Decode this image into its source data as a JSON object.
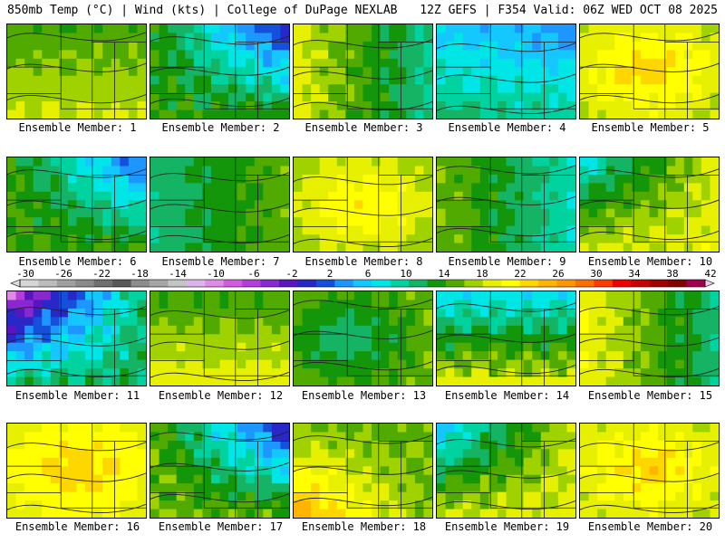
{
  "header": {
    "left": "850mb Temp (°C) | Wind (kts) | College of DuPage NEXLAB",
    "right": "12Z GEFS | F354 Valid: 06Z WED OCT 08 2025"
  },
  "chart_data": {
    "type": "heatmap",
    "title": "850mb Temp (°C) | Wind (kts)",
    "source": "College of DuPage NEXLAB",
    "model_run": "12Z GEFS",
    "forecast_hour": "F354",
    "valid_time": "06Z WED OCT 08 2025",
    "units": "°C",
    "colorbar": {
      "min": -30,
      "max": 42,
      "step": 2,
      "tick_labels": [
        "-30",
        "-26",
        "-22",
        "-18",
        "-14",
        "-10",
        "-6",
        "-2",
        "2",
        "6",
        "10",
        "14",
        "18",
        "22",
        "26",
        "30",
        "34",
        "38",
        "42"
      ],
      "colors": [
        "#d6d6d6",
        "#bcbcbc",
        "#a0a0a0",
        "#8a8a8a",
        "#707070",
        "#585858",
        "#8c8c8c",
        "#a6a6a6",
        "#c4c4c4",
        "#dcb4ec",
        "#e08ae8",
        "#d45ae0",
        "#b43cdc",
        "#8a28d0",
        "#5a14c0",
        "#2828c8",
        "#1450dc",
        "#1e96ff",
        "#14c8ff",
        "#00e6e6",
        "#00d2a0",
        "#14b464",
        "#14960a",
        "#50aa00",
        "#a0d200",
        "#e6f000",
        "#ffff00",
        "#ffd700",
        "#ffb400",
        "#ff9600",
        "#ff6e00",
        "#ff3c00",
        "#f00000",
        "#c80000",
        "#a00000",
        "#820000",
        "#a00050"
      ]
    },
    "members": [
      {
        "label": "Ensemble Member: 1",
        "mean_temp_c": 17,
        "spread": 4,
        "gradient": "warm-north-cool-south"
      },
      {
        "label": "Ensemble Member: 2",
        "mean_temp_c": 10,
        "spread": 8,
        "gradient": "cold-northeast"
      },
      {
        "label": "Ensemble Member: 3",
        "mean_temp_c": 15,
        "spread": 6,
        "gradient": "cool-east"
      },
      {
        "label": "Ensemble Member: 4",
        "mean_temp_c": 10,
        "spread": 5,
        "gradient": "cool-north"
      },
      {
        "label": "Ensemble Member: 5",
        "mean_temp_c": 20,
        "spread": 4,
        "gradient": "warm-center"
      },
      {
        "label": "Ensemble Member: 6",
        "mean_temp_c": 11,
        "spread": 7,
        "gradient": "cold-northeast"
      },
      {
        "label": "Ensemble Member: 7",
        "mean_temp_c": 14,
        "spread": 4,
        "gradient": "cool-west"
      },
      {
        "label": "Ensemble Member: 8",
        "mean_temp_c": 19,
        "spread": 4,
        "gradient": "warm-center"
      },
      {
        "label": "Ensemble Member: 9",
        "mean_temp_c": 13,
        "spread": 5,
        "gradient": "cool-east"
      },
      {
        "label": "Ensemble Member: 10",
        "mean_temp_c": 16,
        "spread": 6,
        "gradient": "cold-northwest"
      },
      {
        "label": "Ensemble Member: 11",
        "mean_temp_c": 6,
        "spread": 10,
        "gradient": "cold-northwest"
      },
      {
        "label": "Ensemble Member: 12",
        "mean_temp_c": 17,
        "spread": 4,
        "gradient": "warm-south"
      },
      {
        "label": "Ensemble Member: 13",
        "mean_temp_c": 14,
        "spread": 4,
        "gradient": "cool-center"
      },
      {
        "label": "Ensemble Member: 14",
        "mean_temp_c": 15,
        "spread": 8,
        "gradient": "cold-north"
      },
      {
        "label": "Ensemble Member: 15",
        "mean_temp_c": 16,
        "spread": 6,
        "gradient": "cool-east"
      },
      {
        "label": "Ensemble Member: 16",
        "mean_temp_c": 21,
        "spread": 3,
        "gradient": "warm-center"
      },
      {
        "label": "Ensemble Member: 17",
        "mean_temp_c": 11,
        "spread": 9,
        "gradient": "cold-northeast"
      },
      {
        "label": "Ensemble Member: 18",
        "mean_temp_c": 18,
        "spread": 5,
        "gradient": "warm-southwest"
      },
      {
        "label": "Ensemble Member: 19",
        "mean_temp_c": 15,
        "spread": 7,
        "gradient": "cold-northwest"
      },
      {
        "label": "Ensemble Member: 20",
        "mean_temp_c": 20,
        "spread": 4,
        "gradient": "warm-center"
      }
    ]
  }
}
